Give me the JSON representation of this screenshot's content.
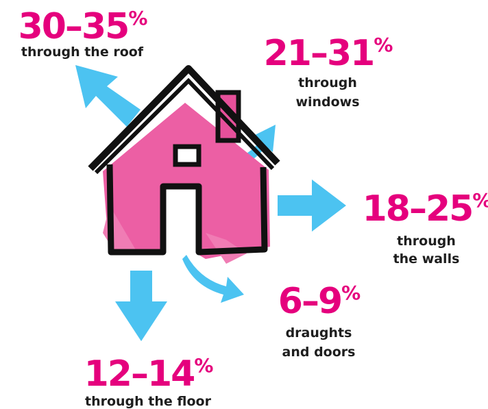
{
  "items": [
    {
      "value": "30–35",
      "unit": "%",
      "lines": [
        "through the roof"
      ]
    },
    {
      "value": "21–31",
      "unit": "%",
      "lines": [
        "through",
        "windows"
      ]
    },
    {
      "value": "18–25",
      "unit": "%",
      "lines": [
        "through",
        "the walls"
      ]
    },
    {
      "value": "6–9",
      "unit": "%",
      "lines": [
        "draughts",
        "and doors"
      ]
    },
    {
      "value": "12–14",
      "unit": "%",
      "lines": [
        "through the floor"
      ]
    }
  ]
}
